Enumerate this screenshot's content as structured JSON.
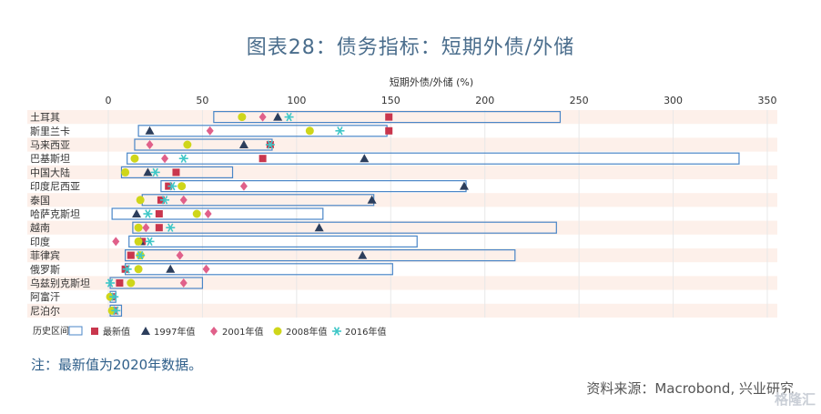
{
  "page": {
    "title": "图表28：债务指标：短期外债/外储",
    "note": "注：最新值为2020年数据。",
    "source": "资料来源：Macrobond, 兴业研究",
    "watermark": "格隆汇"
  },
  "chart_data": {
    "type": "range-dot",
    "xlabel": "短期外债/外储 (%)",
    "xlim": [
      0,
      350
    ],
    "x_ticks": [
      0,
      50,
      100,
      150,
      200,
      250,
      300,
      350
    ],
    "x_tick_labels": [
      "0",
      "50",
      "100",
      "150",
      "200",
      "250",
      "300",
      "350"
    ],
    "categories": [
      "土耳其",
      "斯里兰卡",
      "马来西亚",
      "巴基斯坦",
      "中国大陆",
      "印度尼西亚",
      "泰国",
      "哈萨克斯坦",
      "越南",
      "印度",
      "菲律宾",
      "俄罗斯",
      "乌兹别克斯坦",
      "阿富汗",
      "尼泊尔"
    ],
    "range": {
      "name": "历史区间",
      "low": [
        56,
        16,
        14,
        10,
        7,
        28,
        18,
        2,
        13,
        11,
        9,
        9,
        1,
        1,
        1
      ],
      "high": [
        240,
        148,
        87,
        335,
        66,
        190,
        141,
        114,
        238,
        164,
        216,
        151,
        50,
        4,
        7
      ]
    },
    "series": [
      {
        "name": "最新值",
        "marker": "square",
        "color": "#c9364d",
        "values": [
          149,
          149,
          86,
          82,
          36,
          32,
          28,
          27,
          27,
          18,
          12,
          9,
          6,
          2,
          3
        ]
      },
      {
        "name": "1997年值",
        "marker": "triangle",
        "color": "#2c3e5c",
        "values": [
          90,
          22,
          72,
          136,
          21,
          189,
          140,
          15,
          112,
          17,
          135,
          33,
          null,
          null,
          null
        ]
      },
      {
        "name": "2001年值",
        "marker": "diamond",
        "color": "#e0608a",
        "values": [
          82,
          54,
          22,
          30,
          null,
          72,
          40,
          53,
          20,
          4,
          38,
          52,
          40,
          null,
          3
        ]
      },
      {
        "name": "2008年值",
        "marker": "circle",
        "color": "#cfd61a",
        "values": [
          71,
          107,
          42,
          14,
          9,
          39,
          17,
          47,
          16,
          16,
          17,
          16,
          12,
          1,
          2
        ]
      },
      {
        "name": "2016年值",
        "marker": "asterisk",
        "color": "#3fc7c7",
        "values": [
          96,
          123,
          86,
          40,
          25,
          34,
          30,
          21,
          33,
          22,
          17,
          10,
          1,
          3,
          4
        ]
      }
    ]
  },
  "colors": {
    "range_box": "#4a86c7",
    "band": "#fdf0ea",
    "grid": "#e8e8e8",
    "axis_text": "#333333"
  }
}
